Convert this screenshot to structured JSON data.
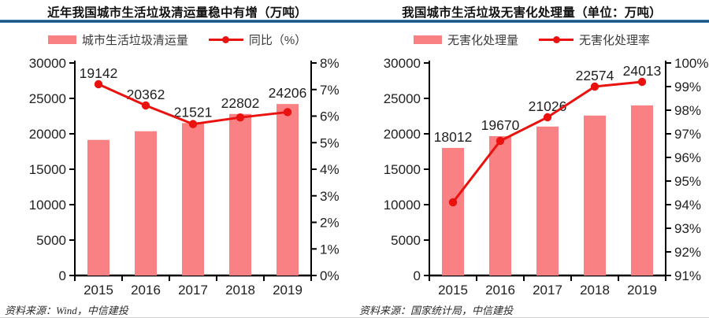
{
  "colors": {
    "bar": "#f98183",
    "line": "#e9120e",
    "rule_core": "#1a4a77",
    "rule_edge": "#4e97cc",
    "axis": "#000000",
    "text": "#1f1f1f"
  },
  "charts": [
    {
      "title": "近年我国城市生活垃圾清运量稳中有增（万吨）",
      "legend": [
        {
          "marker": "bar",
          "label": "城市生活垃圾清运量"
        },
        {
          "marker": "line",
          "label": "同比（%）"
        }
      ],
      "source": "资料来源：Wind，中信建投",
      "chart_data": {
        "type": "bar",
        "categories": [
          "2015",
          "2016",
          "2017",
          "2018",
          "2019"
        ],
        "series": [
          {
            "name": "城市生活垃圾清运量",
            "type": "bar",
            "axis": "left",
            "values": [
              19142,
              20362,
              21521,
              22802,
              24206
            ]
          },
          {
            "name": "同比（%）",
            "type": "line",
            "axis": "right",
            "values": [
              7.2,
              6.4,
              5.7,
              5.95,
              6.15
            ]
          }
        ],
        "bar_labels": [
          "19142",
          "20362",
          "21521",
          "22802",
          "24206"
        ],
        "left_axis": {
          "min": 0,
          "max": 30000,
          "ticks": [
            "0",
            "5000",
            "10000",
            "15000",
            "20000",
            "25000",
            "30000"
          ]
        },
        "right_axis": {
          "min": 0,
          "max": 8,
          "ticks": [
            "0%",
            "1%",
            "2%",
            "3%",
            "4%",
            "5%",
            "6%",
            "7%",
            "8%"
          ]
        },
        "grid": false,
        "legend_position": "top"
      }
    },
    {
      "title": "我国城市生活垃圾无害化处理量（单位：万吨）",
      "legend": [
        {
          "marker": "bar",
          "label": "无害化处理量"
        },
        {
          "marker": "line",
          "label": "无害化处理率"
        }
      ],
      "source": "资料来源：国家统计局，中信建投",
      "chart_data": {
        "type": "bar",
        "categories": [
          "2015",
          "2016",
          "2017",
          "2018",
          "2019"
        ],
        "series": [
          {
            "name": "无害化处理量",
            "type": "bar",
            "axis": "left",
            "values": [
              18012,
              19670,
              21026,
              22574,
              24013
            ]
          },
          {
            "name": "无害化处理率",
            "type": "line",
            "axis": "right",
            "values": [
              94.1,
              96.7,
              97.7,
              99.0,
              99.2
            ]
          }
        ],
        "bar_labels": [
          "18012",
          "19670",
          "21026",
          "22574",
          "24013"
        ],
        "left_axis": {
          "min": 0,
          "max": 30000,
          "ticks": [
            "0",
            "5000",
            "10000",
            "15000",
            "20000",
            "25000",
            "30000"
          ]
        },
        "right_axis": {
          "min": 91,
          "max": 100,
          "ticks": [
            "91%",
            "92%",
            "93%",
            "94%",
            "95%",
            "96%",
            "97%",
            "98%",
            "99%",
            "100%"
          ]
        },
        "grid": false,
        "legend_position": "top"
      }
    }
  ]
}
